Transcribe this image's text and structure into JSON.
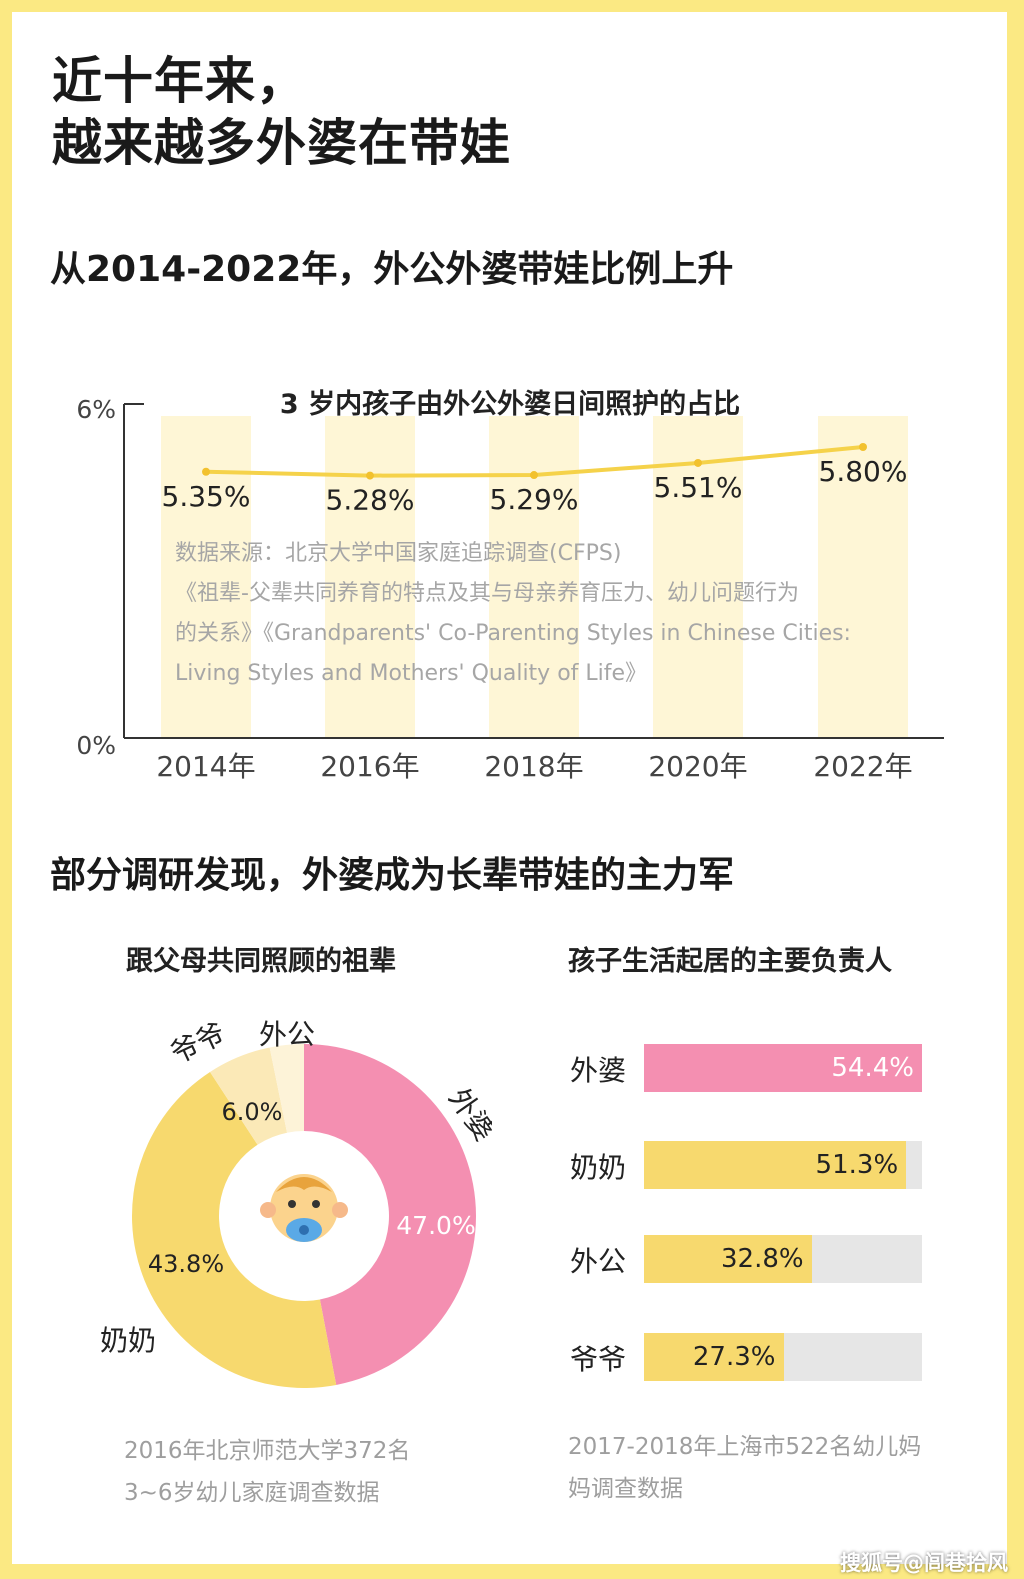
{
  "title_lines": [
    "近十年来，",
    "越来越多外婆在带娃"
  ],
  "section1": {
    "heading": "从2014-2022年，外公外婆带娃比例上升"
  },
  "section2": {
    "heading": "部分调研发现，外婆成为长辈带娃的主力军"
  },
  "colors": {
    "background": "#fbe983",
    "yellow": "#f7d96e",
    "pink": "#f48fb1",
    "light_yellow": "#fdf0c4",
    "track": "#e6e6e6"
  },
  "chart_data": [
    {
      "type": "bar",
      "title": "3 岁内孩子由外公外婆日间照护的占比",
      "categories": [
        "2014年",
        "2016年",
        "2018年",
        "2020年",
        "2022年"
      ],
      "values": [
        5.35,
        5.28,
        5.29,
        5.51,
        5.8
      ],
      "value_labels": [
        "5.35%",
        "5.28%",
        "5.29%",
        "5.51%",
        "5.80%"
      ],
      "overlay": "line",
      "ylim": [
        0,
        6
      ],
      "yticks": [
        "0%",
        "6%"
      ],
      "grid": false,
      "source_lines": [
        "数据来源：北京大学中国家庭追踪调查(CFPS)",
        "《祖辈-父辈共同养育的特点及其与母亲养育压力、幼儿问题行为",
        "的关系》《Grandparents' Co-Parenting Styles in Chinese Cities:",
        "Living Styles and Mothers' Quality of Life》"
      ]
    },
    {
      "type": "pie",
      "title": "跟父母共同照顾的祖辈",
      "slices": [
        {
          "label": "外婆",
          "value": 47.0,
          "value_label": "47.0%",
          "color": "#f48fb1"
        },
        {
          "label": "奶奶",
          "value": 43.8,
          "value_label": "43.8%",
          "color": "#f7d96e"
        },
        {
          "label": "爷爷",
          "value": 6.0,
          "value_label": "6.0%",
          "color": "#fbe9b7"
        },
        {
          "label": "外公",
          "value": 3.2,
          "value_label": "",
          "color": "#fdf3d8"
        }
      ],
      "center_icon": "baby-icon",
      "note_lines": [
        "2016年北京师范大学372名",
        "3~6岁幼儿家庭调查数据"
      ]
    },
    {
      "type": "bar",
      "orientation": "horizontal",
      "title": "孩子生活起居的主要负责人",
      "categories": [
        "外婆",
        "奶奶",
        "外公",
        "爷爷"
      ],
      "values": [
        54.4,
        51.3,
        32.8,
        27.3
      ],
      "value_labels": [
        "54.4%",
        "51.3%",
        "32.8%",
        "27.3%"
      ],
      "colors": [
        "#f48fb1",
        "#f7d96e",
        "#f7d96e",
        "#f7d96e"
      ],
      "value_text_colors": [
        "#ffffff",
        "#222222",
        "#222222",
        "#222222"
      ],
      "xlim": [
        0,
        54.4
      ],
      "note_lines": [
        "2017-2018年上海市522名幼儿妈",
        "妈调查数据"
      ]
    }
  ],
  "watermark": "搜狐号@闾巷拾风"
}
